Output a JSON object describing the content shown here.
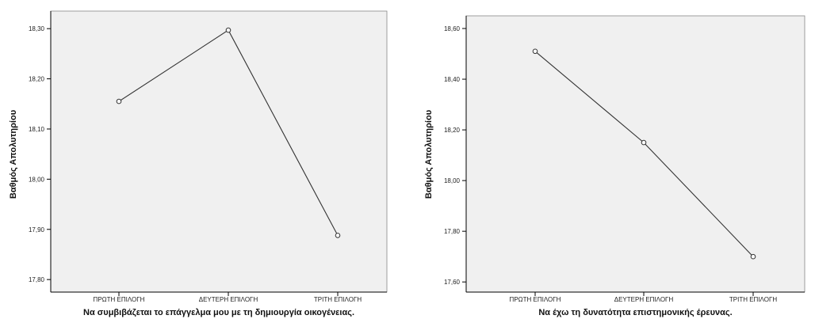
{
  "chart_data": [
    {
      "type": "line",
      "xlabel": "Να συμβιβάζεται το επάγγελμα μου με τη δημιουργία οικογένειας.",
      "ylabel": "Βαθμός Απολυτηρίου",
      "categories": [
        "ΠΡΩΤΗ ΕΠΙΛΟΓΗ",
        "ΔΕΥΤΕΡΗ ΕΠΙΛΟΓΗ",
        "ΤΡΙΤΗ ΕΠΙΛΟΓΗ"
      ],
      "values": [
        18.155,
        18.297,
        17.888
      ],
      "yticks": [
        "17,80",
        "17,90",
        "18,00",
        "18,10",
        "18,20",
        "18,30"
      ],
      "ylim": [
        17.775,
        18.335
      ],
      "grid": false,
      "colors": {
        "plot_bg": "#f0f0f0",
        "line": "#333333",
        "axis": "#000000"
      }
    },
    {
      "type": "line",
      "xlabel": "Να έχω τη δυνατότητα επιστημονικής έρευνας.",
      "ylabel": "Βαθμός Απολυτηρίου",
      "categories": [
        "ΠΡΩΤΗ ΕΠΙΛΟΓΗ",
        "ΔΕΥΤΕΡΗ ΕΠΙΛΟΓΗ",
        "ΤΡΙΤΗ ΕΠΙΛΟΓΗ"
      ],
      "values": [
        18.51,
        18.15,
        17.7
      ],
      "yticks": [
        "17,60",
        "17,80",
        "18,00",
        "18,20",
        "18,40",
        "18,60"
      ],
      "ylim": [
        17.56,
        18.65
      ],
      "grid": false,
      "colors": {
        "plot_bg": "#f0f0f0",
        "line": "#333333",
        "axis": "#000000"
      }
    }
  ]
}
